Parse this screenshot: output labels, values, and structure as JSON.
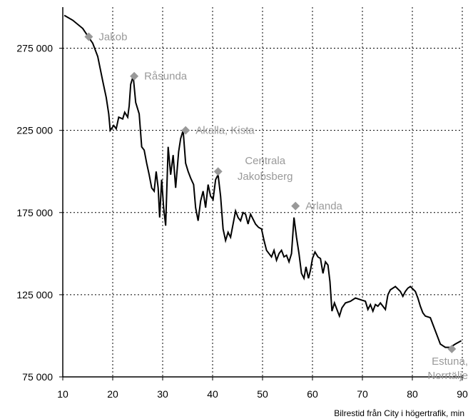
{
  "chart_data": {
    "type": "line",
    "xlabel": "Bilrestid från City i högertrafik, min",
    "ylabel": "",
    "xlim": [
      10,
      90
    ],
    "ylim": [
      75000,
      300000
    ],
    "xticks": [
      10,
      20,
      30,
      40,
      50,
      60,
      70,
      80,
      90
    ],
    "xtick_labels": [
      "10",
      "20",
      "30",
      "40",
      "50",
      "60",
      "70",
      "80",
      "90"
    ],
    "yticks": [
      75000,
      125000,
      175000,
      225000,
      275000
    ],
    "ytick_labels": [
      "75 000",
      "125 000",
      "175 000",
      "225 000",
      "275 000"
    ],
    "grid": true,
    "line_color": "#000000",
    "marker_color": "#999999",
    "annotation_color": "#9a9a9a",
    "series": [
      {
        "values": [
          [
            10.3,
            295000
          ],
          [
            12,
            292000
          ],
          [
            14,
            287000
          ],
          [
            15.1,
            282000
          ],
          [
            16,
            278000
          ],
          [
            17,
            270000
          ],
          [
            18,
            255000
          ],
          [
            18.7,
            245000
          ],
          [
            19.2,
            235000
          ],
          [
            19.5,
            225000
          ],
          [
            20.2,
            228000
          ],
          [
            20.7,
            226000
          ],
          [
            21.2,
            233000
          ],
          [
            22,
            232000
          ],
          [
            22.4,
            236000
          ],
          [
            23,
            233000
          ],
          [
            23.3,
            240000
          ],
          [
            23.6,
            253000
          ],
          [
            24.1,
            258000
          ],
          [
            24.6,
            242000
          ],
          [
            25,
            238000
          ],
          [
            25.3,
            235000
          ],
          [
            25.8,
            215000
          ],
          [
            26.3,
            213000
          ],
          [
            26.8,
            205000
          ],
          [
            27.3,
            198000
          ],
          [
            27.8,
            190000
          ],
          [
            28.3,
            188000
          ],
          [
            28.7,
            200000
          ],
          [
            29.1,
            190000
          ],
          [
            29.4,
            172000
          ],
          [
            29.8,
            195000
          ],
          [
            30.2,
            178000
          ],
          [
            30.6,
            167000
          ],
          [
            31.1,
            215000
          ],
          [
            31.6,
            198000
          ],
          [
            32.1,
            210000
          ],
          [
            32.6,
            190000
          ],
          [
            33.2,
            212000
          ],
          [
            33.6,
            220000
          ],
          [
            34.1,
            225000
          ],
          [
            34.6,
            205000
          ],
          [
            35.1,
            200000
          ],
          [
            35.6,
            196000
          ],
          [
            36.2,
            192000
          ],
          [
            36.6,
            178000
          ],
          [
            37.1,
            170000
          ],
          [
            37.6,
            182000
          ],
          [
            38.1,
            188000
          ],
          [
            38.6,
            178000
          ],
          [
            39.1,
            192000
          ],
          [
            39.6,
            185000
          ],
          [
            40.1,
            183000
          ],
          [
            40.6,
            195000
          ],
          [
            41.1,
            198000
          ],
          [
            41.6,
            185000
          ],
          [
            42.1,
            165000
          ],
          [
            42.6,
            158000
          ],
          [
            43.1,
            163000
          ],
          [
            43.6,
            160000
          ],
          [
            44.1,
            168000
          ],
          [
            44.6,
            176000
          ],
          [
            45.1,
            172000
          ],
          [
            45.6,
            170000
          ],
          [
            46.1,
            175000
          ],
          [
            46.6,
            174000
          ],
          [
            47.1,
            168000
          ],
          [
            47.6,
            174000
          ],
          [
            48.1,
            171000
          ],
          [
            48.6,
            168000
          ],
          [
            49.2,
            166000
          ],
          [
            49.8,
            165000
          ],
          [
            50.3,
            158000
          ],
          [
            50.8,
            152000
          ],
          [
            51.3,
            150000
          ],
          [
            51.8,
            148000
          ],
          [
            52.3,
            152000
          ],
          [
            52.8,
            146000
          ],
          [
            53.3,
            150000
          ],
          [
            53.8,
            152000
          ],
          [
            54.3,
            148000
          ],
          [
            54.8,
            149000
          ],
          [
            55.3,
            145000
          ],
          [
            55.8,
            150000
          ],
          [
            56.3,
            172000
          ],
          [
            56.8,
            160000
          ],
          [
            57.3,
            150000
          ],
          [
            57.8,
            138000
          ],
          [
            58.3,
            135000
          ],
          [
            58.7,
            142000
          ],
          [
            59.2,
            135000
          ],
          [
            59.6,
            140000
          ],
          [
            60,
            147000
          ],
          [
            60.5,
            151000
          ],
          [
            61.1,
            148000
          ],
          [
            61.6,
            147000
          ],
          [
            62.1,
            138000
          ],
          [
            62.6,
            145000
          ],
          [
            63.1,
            143000
          ],
          [
            63.5,
            133000
          ],
          [
            63.9,
            115000
          ],
          [
            64.4,
            120000
          ],
          [
            64.9,
            116000
          ],
          [
            65.4,
            112000
          ],
          [
            65.9,
            117000
          ],
          [
            66.6,
            120000
          ],
          [
            67.6,
            121000
          ],
          [
            68.6,
            123000
          ],
          [
            69.6,
            122000
          ],
          [
            70.6,
            121000
          ],
          [
            71.1,
            116000
          ],
          [
            71.6,
            119000
          ],
          [
            72.1,
            115000
          ],
          [
            72.6,
            119000
          ],
          [
            73.1,
            118000
          ],
          [
            73.6,
            120000
          ],
          [
            74.1,
            118000
          ],
          [
            74.6,
            116000
          ],
          [
            75.1,
            125000
          ],
          [
            75.6,
            128000
          ],
          [
            76.6,
            130000
          ],
          [
            77.6,
            127000
          ],
          [
            78.1,
            124000
          ],
          [
            78.6,
            127000
          ],
          [
            79.1,
            129000
          ],
          [
            79.6,
            130000
          ],
          [
            80.6,
            127000
          ],
          [
            81.1,
            123000
          ],
          [
            81.6,
            118000
          ],
          [
            82.1,
            114000
          ],
          [
            82.6,
            112000
          ],
          [
            83.6,
            111000
          ],
          [
            84.6,
            103000
          ],
          [
            85.1,
            99000
          ],
          [
            85.6,
            95000
          ],
          [
            86.1,
            94000
          ],
          [
            86.6,
            93000
          ],
          [
            87.6,
            93000
          ],
          [
            88.6,
            95000
          ],
          [
            89.8,
            97000
          ]
        ]
      }
    ],
    "annotations": [
      {
        "label": "Jakob",
        "x": 15.2,
        "y": 282000
      },
      {
        "label": "Råsunda",
        "x": 24.3,
        "y": 258000
      },
      {
        "label": "Akalla, Kista",
        "x": 34.6,
        "y": 225000
      },
      {
        "label": "Centrala\nJakobsberg",
        "x": 41.1,
        "y": 200000
      },
      {
        "label": "Arlanda",
        "x": 56.6,
        "y": 179000
      },
      {
        "label": "Estuna,\nNorrtälje",
        "x": 87.9,
        "y": 92000
      }
    ]
  }
}
